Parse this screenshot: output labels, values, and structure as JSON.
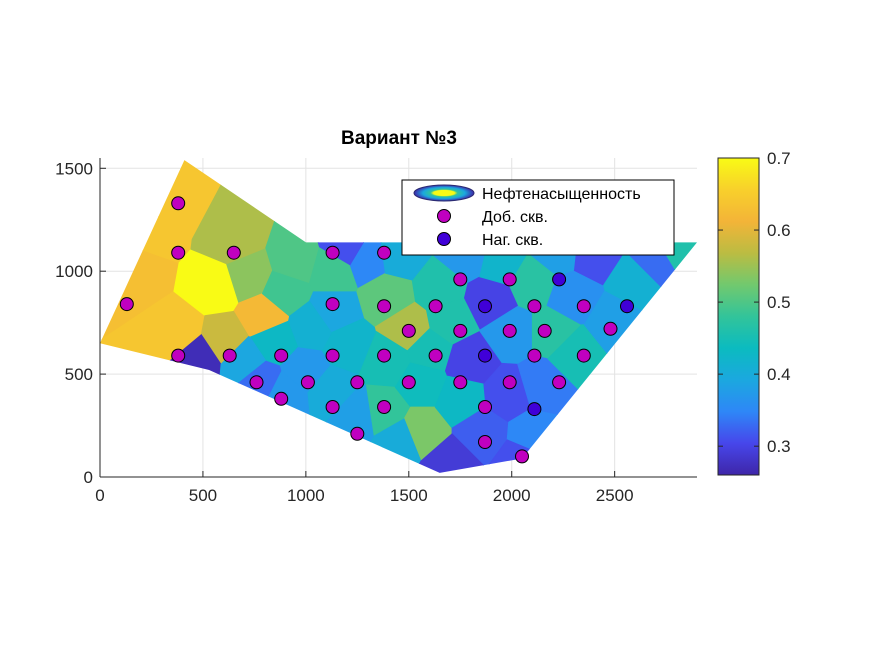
{
  "chart_data": {
    "type": "scatter",
    "title": "Вариант №3",
    "xlim": [
      0,
      2900
    ],
    "ylim": [
      0,
      1550
    ],
    "x_ticks": [
      "0",
      "500",
      "1000",
      "1500",
      "2000",
      "2500"
    ],
    "y_ticks": [
      "0",
      "500",
      "1000",
      "1500"
    ],
    "grid": true,
    "legend": {
      "placement": "top-right",
      "entries": [
        "Нефтенасыщенность",
        "Доб. скв.",
        "Наг. скв."
      ]
    },
    "colorbar": {
      "limits": [
        0.26,
        0.7
      ],
      "ticks": [
        "0.3",
        "0.4",
        "0.5",
        "0.6",
        "0.7"
      ]
    },
    "field": {
      "name": "Нефтенасыщенность",
      "boundary": [
        [
          410,
          1540
        ],
        [
          0,
          650
        ],
        [
          530,
          520
        ],
        [
          1650,
          20
        ],
        [
          2050,
          90
        ],
        [
          2900,
          1140
        ],
        [
          1000,
          1140
        ]
      ],
      "cells": [
        [
          330,
          1320,
          0.64
        ],
        [
          180,
          1000,
          0.63
        ],
        [
          380,
          700,
          0.64
        ],
        [
          250,
          1200,
          0.64
        ],
        [
          560,
          930,
          0.71
        ],
        [
          720,
          980,
          0.54
        ],
        [
          650,
          1150,
          0.56
        ],
        [
          800,
          780,
          0.62
        ],
        [
          600,
          660,
          0.58
        ],
        [
          480,
          580,
          0.27
        ],
        [
          850,
          660,
          0.43
        ],
        [
          900,
          900,
          0.49
        ],
        [
          700,
          560,
          0.39
        ],
        [
          780,
          460,
          0.33
        ],
        [
          900,
          400,
          0.37
        ],
        [
          1000,
          520,
          0.37
        ],
        [
          950,
          1050,
          0.5
        ],
        [
          1130,
          1000,
          0.49
        ],
        [
          1130,
          800,
          0.39
        ],
        [
          1200,
          640,
          0.42
        ],
        [
          1120,
          420,
          0.4
        ],
        [
          1250,
          300,
          0.38
        ],
        [
          1300,
          1060,
          0.35
        ],
        [
          1400,
          880,
          0.51
        ],
        [
          1500,
          720,
          0.56
        ],
        [
          1400,
          560,
          0.45
        ],
        [
          1380,
          320,
          0.48
        ],
        [
          1560,
          460,
          0.44
        ],
        [
          1560,
          220,
          0.53
        ],
        [
          1460,
          180,
          0.4
        ],
        [
          1600,
          620,
          0.45
        ],
        [
          1650,
          920,
          0.46
        ],
        [
          1780,
          1080,
          0.37
        ],
        [
          1700,
          760,
          0.46
        ],
        [
          1800,
          560,
          0.3
        ],
        [
          1760,
          380,
          0.43
        ],
        [
          1860,
          220,
          0.32
        ],
        [
          1700,
          60,
          0.29
        ],
        [
          1900,
          860,
          0.3
        ],
        [
          1950,
          1040,
          0.42
        ],
        [
          2000,
          700,
          0.37
        ],
        [
          1980,
          400,
          0.31
        ],
        [
          2100,
          200,
          0.35
        ],
        [
          2050,
          80,
          0.31
        ],
        [
          2100,
          950,
          0.47
        ],
        [
          2200,
          700,
          0.47
        ],
        [
          2150,
          450,
          0.34
        ],
        [
          2300,
          880,
          0.36
        ],
        [
          2300,
          600,
          0.45
        ],
        [
          2400,
          1080,
          0.31
        ],
        [
          2500,
          760,
          0.38
        ],
        [
          2600,
          950,
          0.41
        ],
        [
          2700,
          1050,
          0.33
        ],
        [
          2800,
          1110,
          0.46
        ],
        [
          1200,
          1120,
          0.31
        ],
        [
          1450,
          1080,
          0.4
        ],
        [
          2220,
          1100,
          0.38
        ],
        [
          1030,
          730,
          0.41
        ]
      ]
    },
    "series": [
      {
        "name": "Доб. скв.",
        "color": "#c000c0",
        "points": [
          [
            130,
            840
          ],
          [
            380,
            1330
          ],
          [
            380,
            1090
          ],
          [
            380,
            590
          ],
          [
            650,
            1090
          ],
          [
            630,
            590
          ],
          [
            880,
            590
          ],
          [
            760,
            460
          ],
          [
            880,
            380
          ],
          [
            1010,
            460
          ],
          [
            1130,
            1090
          ],
          [
            1130,
            840
          ],
          [
            1130,
            590
          ],
          [
            1130,
            340
          ],
          [
            1250,
            460
          ],
          [
            1250,
            210
          ],
          [
            1380,
            1090
          ],
          [
            1380,
            830
          ],
          [
            1380,
            590
          ],
          [
            1380,
            340
          ],
          [
            1500,
            710
          ],
          [
            1500,
            460
          ],
          [
            1630,
            830
          ],
          [
            1630,
            590
          ],
          [
            1750,
            960
          ],
          [
            1750,
            710
          ],
          [
            1750,
            460
          ],
          [
            1870,
            340
          ],
          [
            1870,
            170
          ],
          [
            1990,
            960
          ],
          [
            1990,
            710
          ],
          [
            1990,
            460
          ],
          [
            2050,
            100
          ],
          [
            2110,
            830
          ],
          [
            2110,
            590
          ],
          [
            2160,
            710
          ],
          [
            2230,
            460
          ],
          [
            2350,
            830
          ],
          [
            2350,
            590
          ],
          [
            2480,
            720
          ]
        ]
      },
      {
        "name": "Наг. скв.",
        "color": "#4000d8",
        "points": [
          [
            1870,
            830
          ],
          [
            1870,
            590
          ],
          [
            2110,
            330
          ],
          [
            2230,
            960
          ],
          [
            2560,
            830
          ]
        ]
      }
    ]
  }
}
